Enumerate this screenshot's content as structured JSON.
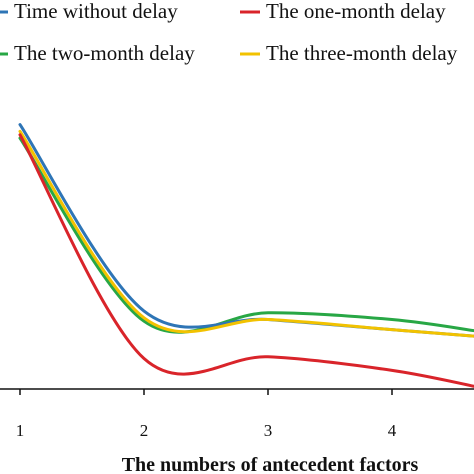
{
  "chart_data": {
    "type": "line",
    "title": "",
    "xlabel": "The numbers  of antecedent factors",
    "ylabel": "",
    "x": [
      1,
      2,
      3,
      4,
      4.7
    ],
    "xticks": [
      1,
      2,
      3,
      4
    ],
    "xtick_labels": [
      "1",
      "2",
      "3",
      "4"
    ],
    "xlim": [
      0.85,
      4.7
    ],
    "ylim": [
      0,
      1
    ],
    "grid": false,
    "legend": "top",
    "series": [
      {
        "name": "Time without delay",
        "color": "#2e75b6",
        "values": [
          0.78,
          0.23,
          0.205,
          0.175,
          0.155
        ]
      },
      {
        "name": "The one-month delay",
        "color": "#d9242a",
        "values": [
          0.75,
          0.09,
          0.095,
          0.055,
          0.005
        ]
      },
      {
        "name": "The two-month delay",
        "color": "#28a745",
        "values": [
          0.74,
          0.2,
          0.225,
          0.205,
          0.17
        ]
      },
      {
        "name": "The three-month delay",
        "color": "#f2c200",
        "values": [
          0.76,
          0.21,
          0.205,
          0.175,
          0.155
        ]
      }
    ]
  }
}
